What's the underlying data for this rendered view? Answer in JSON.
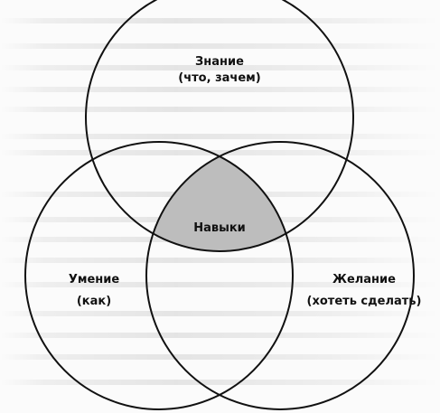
{
  "diagram": {
    "type": "venn-3",
    "sets": [
      {
        "id": "knowledge",
        "name": "Знание",
        "sub": "(что, зачем)"
      },
      {
        "id": "skill",
        "name": "Умение",
        "sub": "(как)"
      },
      {
        "id": "desire",
        "name": "Желание",
        "sub": "(хотеть сделать)"
      }
    ],
    "intersection": {
      "label": "Навыки",
      "fill": "#bdbdbd"
    },
    "stroke": "#111111"
  }
}
